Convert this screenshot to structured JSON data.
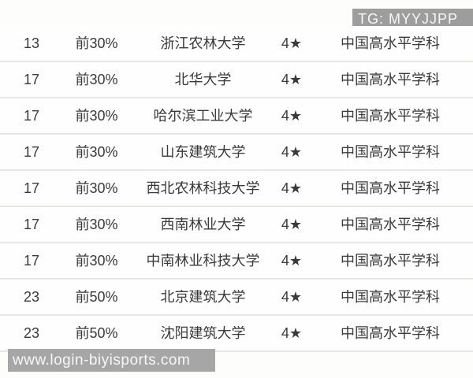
{
  "watermarks": {
    "tg_badge": "TG: MYYJJPP",
    "site_badge": "www.login-biyisports.com"
  },
  "colors": {
    "page_background": "#fdfdfc",
    "row_background": "#fefefe",
    "row_separator": "#e9e6e3",
    "text": "#3a3a3a",
    "watermark_background": "#9d9d9d",
    "watermark_text": "#f7f7f7"
  },
  "table": {
    "rows": [
      {
        "rank": "13",
        "tier": "前30%",
        "university": "浙江农林大学",
        "stars": "4★",
        "level": "中国高水平学科"
      },
      {
        "rank": "17",
        "tier": "前30%",
        "university": "北华大学",
        "stars": "4★",
        "level": "中国高水平学科"
      },
      {
        "rank": "17",
        "tier": "前30%",
        "university": "哈尔滨工业大学",
        "stars": "4★",
        "level": "中国高水平学科"
      },
      {
        "rank": "17",
        "tier": "前30%",
        "university": "山东建筑大学",
        "stars": "4★",
        "level": "中国高水平学科"
      },
      {
        "rank": "17",
        "tier": "前30%",
        "university": "西北农林科技大学",
        "stars": "4★",
        "level": "中国高水平学科"
      },
      {
        "rank": "17",
        "tier": "前30%",
        "university": "西南林业大学",
        "stars": "4★",
        "level": "中国高水平学科"
      },
      {
        "rank": "17",
        "tier": "前30%",
        "university": "中南林业科技大学",
        "stars": "4★",
        "level": "中国高水平学科"
      },
      {
        "rank": "23",
        "tier": "前50%",
        "university": "北京建筑大学",
        "stars": "4★",
        "level": "中国高水平学科"
      },
      {
        "rank": "23",
        "tier": "前50%",
        "university": "沈阳建筑大学",
        "stars": "4★",
        "level": "中国高水平学科"
      }
    ]
  }
}
